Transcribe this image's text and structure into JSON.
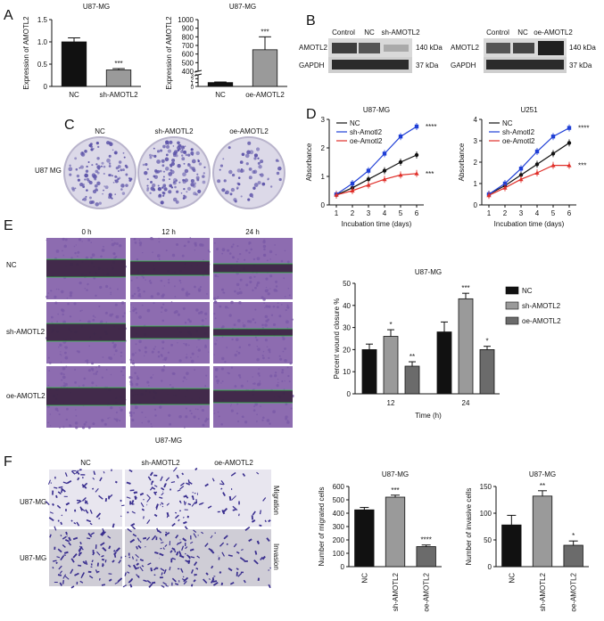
{
  "panels": {
    "A": "A",
    "B": "B",
    "C": "C",
    "D": "D",
    "E": "E",
    "F": "F"
  },
  "colors": {
    "black_bar": "#111111",
    "grey_bar": "#9a9a9a",
    "dark_grey_bar": "#6b6b6b",
    "blue": "#1f3fd6",
    "red": "#e0302a",
    "wound_dark": "#3a2340",
    "wound_cell": "#7a5aa8",
    "transwell_bg": "#e8e6ef",
    "transwell_cell": "#3a2f8f",
    "gel_dark": "#2b2b2b"
  },
  "panel_b": {
    "left": {
      "headers": [
        "Control",
        "NC",
        "sh-AMOTL2"
      ],
      "rows": [
        {
          "label": "AMOTL2",
          "size": "140 kDa"
        },
        {
          "label": "GAPDH",
          "size": "37 kDa"
        }
      ]
    },
    "right": {
      "headers": [
        "Control",
        "NC",
        "oe-AMOTL2"
      ],
      "rows": [
        {
          "label": "AMOTL2",
          "size": "140 kDa"
        },
        {
          "label": "GAPDH",
          "size": "37 kDa"
        }
      ]
    }
  },
  "panel_c": {
    "headers": [
      "NC",
      "sh-AMOTL2",
      "oe-AMOTL2"
    ],
    "row_label": "U87 MG"
  },
  "panel_e": {
    "time_headers": [
      "0 h",
      "12 h",
      "24 h"
    ],
    "row_labels": [
      "NC",
      "sh-AMOTL2",
      "oe-AMOTL2"
    ],
    "footer": "U87-MG"
  },
  "panel_f": {
    "headers": [
      "NC",
      "sh-AMOTL2",
      "oe-AMOTL2"
    ],
    "row_labels": [
      "U87-MG",
      "U87-MG"
    ],
    "side_labels": [
      "Migration",
      "Invasion"
    ]
  },
  "chart_data": [
    {
      "id": "A-left",
      "type": "bar",
      "title": "U87-MG",
      "ylabel": "Expression of AMOTL2",
      "categories": [
        "NC",
        "sh-AMOTL2"
      ],
      "values": [
        1.0,
        0.37
      ],
      "errors": [
        0.09,
        0.03
      ],
      "ylim": [
        0,
        1.5
      ],
      "yticks": [
        "0",
        "0.5",
        "1.0",
        "1.5"
      ],
      "significance": [
        "",
        "***"
      ]
    },
    {
      "id": "A-right",
      "type": "bar",
      "title": "U87-MG",
      "ylabel": "Expression of AMOTL2",
      "categories": [
        "NC",
        "oe-AMOTL2"
      ],
      "values": [
        1.0,
        650
      ],
      "errors": [
        0.15,
        150
      ],
      "ylim": [
        0,
        1000
      ],
      "yticks": [
        "0",
        "1",
        "2",
        "3",
        "400",
        "500",
        "600",
        "700",
        "800",
        "900",
        "1000"
      ],
      "significance": [
        "",
        "***"
      ]
    },
    {
      "id": "D-left",
      "type": "line",
      "title": "U87-MG",
      "xlabel": "Incubation time (days)",
      "ylabel": "Absorbance",
      "x": [
        1,
        2,
        3,
        4,
        5,
        6
      ],
      "ylim": [
        0,
        3
      ],
      "yticks": [
        "0",
        "1",
        "2",
        "3"
      ],
      "series": [
        {
          "name": "NC",
          "values": [
            0.35,
            0.6,
            0.9,
            1.2,
            1.5,
            1.75
          ]
        },
        {
          "name": "sh-Amotl2",
          "values": [
            0.37,
            0.75,
            1.2,
            1.8,
            2.4,
            2.75
          ]
        },
        {
          "name": "oe-Amotl2",
          "values": [
            0.35,
            0.5,
            0.7,
            0.9,
            1.05,
            1.1
          ]
        }
      ],
      "annotations": [
        "****",
        "***"
      ]
    },
    {
      "id": "D-right",
      "type": "line",
      "title": "U251",
      "xlabel": "Incubation time (days)",
      "ylabel": "Absorbance",
      "x": [
        1,
        2,
        3,
        4,
        5,
        6
      ],
      "ylim": [
        0,
        4
      ],
      "yticks": [
        "0",
        "1",
        "2",
        "3",
        "4"
      ],
      "series": [
        {
          "name": "NC",
          "values": [
            0.5,
            0.9,
            1.4,
            1.9,
            2.4,
            2.9
          ]
        },
        {
          "name": "sh-Amotl2",
          "values": [
            0.5,
            1.0,
            1.7,
            2.5,
            3.2,
            3.6
          ]
        },
        {
          "name": "oe-Amotl2",
          "values": [
            0.45,
            0.8,
            1.2,
            1.5,
            1.85,
            1.85
          ]
        }
      ],
      "annotations": [
        "****",
        "***"
      ]
    },
    {
      "id": "E-chart",
      "type": "bar",
      "title": "U87-MG",
      "xlabel": "Time (h)",
      "ylabel": "Percent wound closure %",
      "categories": [
        "12",
        "24"
      ],
      "ylim": [
        0,
        50
      ],
      "yticks": [
        "0",
        "10",
        "20",
        "30",
        "40",
        "50"
      ],
      "series": [
        {
          "name": "NC",
          "values": [
            20,
            28
          ],
          "errors": [
            2.5,
            4.5
          ],
          "sig": [
            "",
            ""
          ]
        },
        {
          "name": "sh-AMOTL2",
          "values": [
            26,
            43
          ],
          "errors": [
            3,
            2.5
          ],
          "sig": [
            "*",
            "***"
          ]
        },
        {
          "name": "oe-AMOTL2",
          "values": [
            12.5,
            20
          ],
          "errors": [
            2,
            1.5
          ],
          "sig": [
            "**",
            "*"
          ]
        }
      ]
    },
    {
      "id": "F-migrated",
      "type": "bar",
      "title": "U87-MG",
      "ylabel": "Number of migrated cells",
      "categories": [
        "NC",
        "sh-AMOTL2",
        "oe-AMOTL2"
      ],
      "values": [
        425,
        520,
        150
      ],
      "errors": [
        18,
        15,
        12
      ],
      "ylim": [
        0,
        600
      ],
      "yticks": [
        "0",
        "100",
        "200",
        "300",
        "400",
        "500",
        "600"
      ],
      "significance": [
        "",
        "***",
        "****"
      ]
    },
    {
      "id": "F-invasive",
      "type": "bar",
      "title": "U87-MG",
      "ylabel": "Number of invasive cells",
      "categories": [
        "NC",
        "sh-AMOTL2",
        "oe-AMOTL2"
      ],
      "values": [
        78,
        132,
        40
      ],
      "errors": [
        18,
        10,
        8
      ],
      "ylim": [
        0,
        150
      ],
      "yticks": [
        "0",
        "50",
        "100",
        "150"
      ],
      "significance": [
        "",
        "**",
        "*"
      ]
    }
  ]
}
